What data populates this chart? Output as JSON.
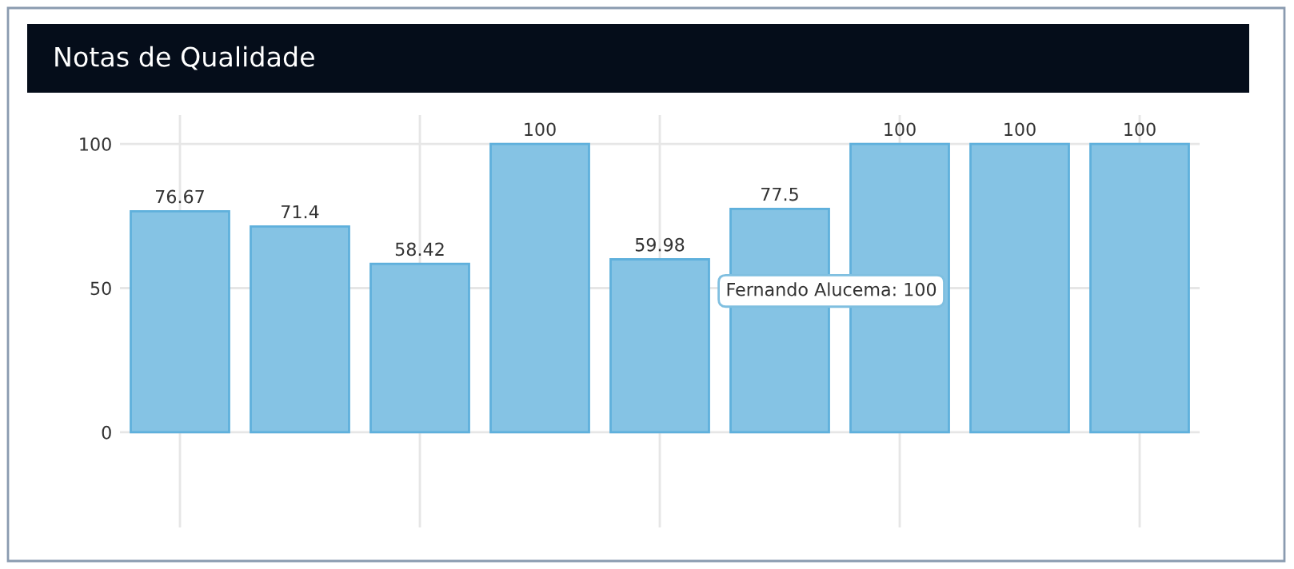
{
  "chart_data": {
    "type": "bar",
    "title": "Notas de Qualidade",
    "categories": [
      null,
      null,
      null,
      null,
      null,
      null,
      null,
      null,
      null
    ],
    "values": [
      76.67,
      71.4,
      58.42,
      100,
      59.98,
      77.5,
      100,
      100,
      100
    ],
    "color": "#85c3e4",
    "ylim": [
      -33,
      110
    ],
    "yticks": [
      0,
      50,
      100
    ],
    "grid": true,
    "data_labels": true,
    "annotations": [
      "Fernando Alucema: 100"
    ]
  }
}
